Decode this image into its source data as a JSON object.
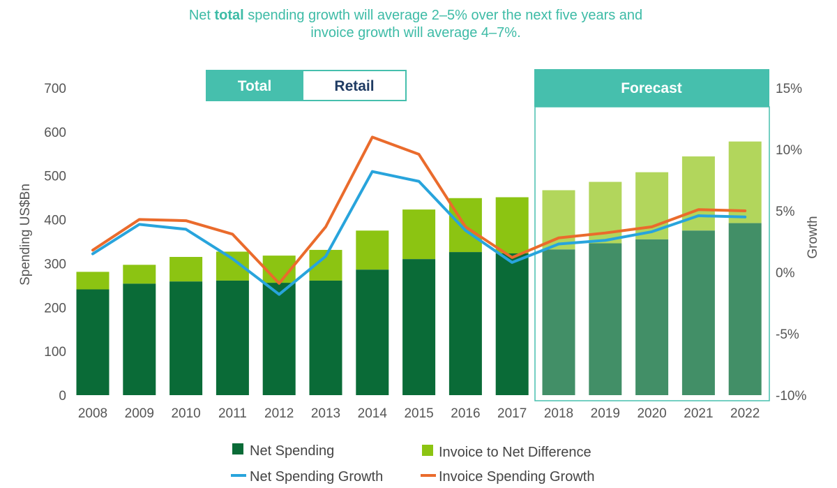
{
  "title": {
    "part1": "Net ",
    "bold": "total",
    "part2": " spending growth will average 2–5% over the next five years and",
    "line2": "invoice growth will average 4–7%."
  },
  "tabs": {
    "total": "Total",
    "retail": "Retail",
    "forecast": "Forecast"
  },
  "colors": {
    "net_spending": "#0a6b37",
    "invoice_diff": "#8cc412",
    "net_forecast": "#428f67",
    "invoice_diff_forecast": "#b2d65c",
    "net_growth_line": "#28a4dc",
    "invoice_growth_line": "#ea6b2c",
    "accent_teal": "#46bfad"
  },
  "chart_data": {
    "type": "bar",
    "categories": [
      "2008",
      "2009",
      "2010",
      "2011",
      "2012",
      "2013",
      "2014",
      "2015",
      "2016",
      "2017",
      "2018",
      "2019",
      "2020",
      "2021",
      "2022"
    ],
    "forecast_from": "2018",
    "ylabel": "Spending US$Bn",
    "y2label": "Growth",
    "ylim": [
      0,
      700
    ],
    "y_ticks": [
      "0",
      "100",
      "200",
      "300",
      "400",
      "500",
      "600",
      "700"
    ],
    "y2lim": [
      -10,
      15
    ],
    "y2_ticks": [
      "-10%",
      "-5%",
      "0%",
      "5%",
      "10%",
      "15%"
    ],
    "series": [
      {
        "name": "Net Spending",
        "kind": "bar",
        "values": [
          241,
          254,
          259,
          261,
          256,
          261,
          286,
          310,
          326,
          323,
          332,
          346,
          355,
          375,
          392
        ]
      },
      {
        "name": "Invoice to Net Difference",
        "kind": "bar-stacked",
        "values": [
          40,
          43,
          56,
          66,
          62,
          70,
          89,
          113,
          123,
          128,
          135,
          140,
          153,
          169,
          186
        ]
      },
      {
        "name": "Net Spending Growth",
        "kind": "line",
        "axis": "right",
        "values": [
          1.5,
          3.9,
          3.5,
          1.1,
          -1.8,
          1.3,
          8.2,
          7.4,
          3.4,
          0.8,
          2.3,
          2.6,
          3.3,
          4.6,
          4.5
        ]
      },
      {
        "name": "Invoice Spending Growth",
        "kind": "line",
        "axis": "right",
        "values": [
          1.8,
          4.3,
          4.2,
          3.1,
          -0.9,
          3.7,
          11.0,
          9.6,
          3.7,
          1.2,
          2.8,
          3.2,
          3.7,
          5.1,
          5.0
        ]
      }
    ],
    "legend": [
      "Net Spending",
      "Invoice to Net Difference",
      "Net Spending Growth",
      "Invoice Spending Growth"
    ],
    "legend_position": "bottom",
    "grid": false
  }
}
